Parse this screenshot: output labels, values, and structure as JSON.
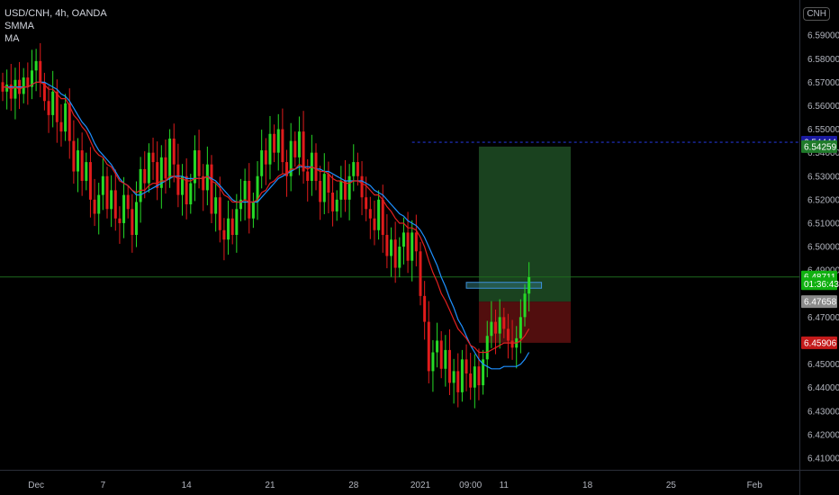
{
  "legend": {
    "symbol": "USD/CNH, 4h, OANDA",
    "indicator1": "SMMA",
    "indicator2": "MA"
  },
  "badge": "CNH",
  "colors": {
    "background": "#000000",
    "up": "#26d926",
    "down": "#e01b1b",
    "smma": "#e02020",
    "ma": "#1e90ff",
    "axis_text": "#b2b5be",
    "current_line": "#1e6b1e",
    "target_line": "#2233cc",
    "profit_zone": "#1f4d25",
    "loss_zone": "#5a1010"
  },
  "chart_data": {
    "type": "candlestick",
    "ylim": [
      6.405,
      6.605
    ],
    "y_ticks": [
      "6.59000",
      "6.58000",
      "6.57000",
      "6.56000",
      "6.55000",
      "6.54000",
      "6.53000",
      "6.52000",
      "6.51000",
      "6.50000",
      "6.49000",
      "6.47000",
      "6.45000",
      "6.44000",
      "6.43000",
      "6.42000",
      "6.41000"
    ],
    "y_tick_values": [
      6.59,
      6.58,
      6.57,
      6.56,
      6.55,
      6.54,
      6.53,
      6.52,
      6.51,
      6.5,
      6.49,
      6.47,
      6.45,
      6.44,
      6.43,
      6.42,
      6.41
    ],
    "x_ticks": [
      {
        "label": "Dec",
        "i": 8
      },
      {
        "label": "7",
        "i": 24
      },
      {
        "label": "14",
        "i": 44
      },
      {
        "label": "21",
        "i": 64
      },
      {
        "label": "28",
        "i": 84
      },
      {
        "label": "2021",
        "i": 100
      },
      {
        "label": "09:00",
        "i": 112
      },
      {
        "label": "11",
        "i": 120
      },
      {
        "label": "18",
        "i": 140
      },
      {
        "label": "25",
        "i": 160
      },
      {
        "label": "Feb",
        "i": 180
      }
    ],
    "price_labels": [
      {
        "text": "6.54444",
        "value": 6.54444,
        "bg": "#1a1aa0",
        "fg": "#ffffff"
      },
      {
        "text": "6.54259",
        "value": 6.54259,
        "bg": "#1f7a2a",
        "fg": "#ffffff"
      },
      {
        "text": "6.48711",
        "value": 6.48711,
        "bg": "#10b010",
        "fg": "#ffffff"
      },
      {
        "text": "01:36:43",
        "value": 6.4842,
        "bg": "#10b010",
        "fg": "#ffffff"
      },
      {
        "text": "6.47658",
        "value": 6.47658,
        "bg": "#8a8a8a",
        "fg": "#ffffff"
      },
      {
        "text": "6.45906",
        "value": 6.45906,
        "bg": "#c41a1a",
        "fg": "#ffffff"
      }
    ],
    "current_price": 6.48711,
    "target_price": 6.54444,
    "position": {
      "entry": 6.47658,
      "target": 6.54259,
      "stop": 6.45906,
      "start_i": 114,
      "end_i": 136
    },
    "entry_box": {
      "top": 6.4848,
      "bottom": 6.4823,
      "start_i": 111,
      "end_i": 129
    },
    "closes": [
      6.566,
      6.569,
      6.563,
      6.571,
      6.565,
      6.572,
      6.568,
      6.575,
      6.579,
      6.57,
      6.562,
      6.556,
      6.566,
      6.553,
      6.549,
      6.561,
      6.545,
      6.532,
      6.541,
      6.528,
      6.536,
      6.52,
      6.514,
      6.522,
      6.53,
      6.516,
      6.524,
      6.512,
      6.51,
      6.522,
      6.516,
      6.505,
      6.519,
      6.533,
      6.527,
      6.54,
      6.536,
      6.525,
      6.538,
      6.529,
      6.546,
      6.535,
      6.522,
      6.53,
      6.518,
      6.527,
      6.541,
      6.53,
      6.524,
      6.535,
      6.514,
      6.521,
      6.507,
      6.503,
      6.512,
      6.505,
      6.516,
      6.52,
      6.528,
      6.512,
      6.519,
      6.53,
      6.541,
      6.535,
      6.548,
      6.54,
      6.55,
      6.536,
      6.53,
      6.545,
      6.538,
      6.549,
      6.532,
      6.528,
      6.54,
      6.528,
      6.519,
      6.531,
      6.523,
      6.515,
      6.52,
      6.528,
      6.52,
      6.53,
      6.536,
      6.53,
      6.521,
      6.516,
      6.512,
      6.507,
      6.52,
      6.505,
      6.496,
      6.503,
      6.491,
      6.5,
      6.506,
      6.494,
      6.506,
      6.498,
      6.479,
      6.468,
      6.447,
      6.455,
      6.46,
      6.448,
      6.456,
      6.442,
      6.447,
      6.438,
      6.452,
      6.446,
      6.44,
      6.449,
      6.441,
      6.452,
      6.462,
      6.468,
      6.463,
      6.47,
      6.465,
      6.46,
      6.457,
      6.461,
      6.47,
      6.48,
      6.487
    ],
    "opens": [
      6.57,
      6.566,
      6.569,
      6.563,
      6.571,
      6.565,
      6.572,
      6.568,
      6.575,
      6.579,
      6.57,
      6.562,
      6.556,
      6.566,
      6.553,
      6.549,
      6.561,
      6.545,
      6.532,
      6.541,
      6.528,
      6.536,
      6.52,
      6.514,
      6.522,
      6.53,
      6.516,
      6.524,
      6.512,
      6.51,
      6.522,
      6.516,
      6.505,
      6.519,
      6.533,
      6.527,
      6.54,
      6.536,
      6.525,
      6.538,
      6.529,
      6.546,
      6.535,
      6.522,
      6.53,
      6.518,
      6.527,
      6.541,
      6.53,
      6.524,
      6.535,
      6.514,
      6.521,
      6.507,
      6.503,
      6.512,
      6.505,
      6.516,
      6.52,
      6.528,
      6.512,
      6.519,
      6.53,
      6.541,
      6.535,
      6.548,
      6.54,
      6.55,
      6.536,
      6.53,
      6.545,
      6.538,
      6.549,
      6.532,
      6.528,
      6.54,
      6.528,
      6.519,
      6.531,
      6.523,
      6.515,
      6.52,
      6.528,
      6.52,
      6.53,
      6.536,
      6.53,
      6.521,
      6.516,
      6.512,
      6.507,
      6.52,
      6.505,
      6.496,
      6.503,
      6.491,
      6.5,
      6.506,
      6.494,
      6.506,
      6.498,
      6.479,
      6.468,
      6.447,
      6.455,
      6.46,
      6.448,
      6.456,
      6.442,
      6.447,
      6.438,
      6.452,
      6.446,
      6.44,
      6.449,
      6.441,
      6.452,
      6.462,
      6.468,
      6.463,
      6.47,
      6.465,
      6.46,
      6.457,
      6.461,
      6.47,
      6.48
    ],
    "smma": [
      6.568,
      6.568,
      6.567,
      6.568,
      6.567,
      6.568,
      6.568,
      6.569,
      6.57,
      6.57,
      6.569,
      6.567,
      6.567,
      6.565,
      6.563,
      6.563,
      6.56,
      6.556,
      6.554,
      6.551,
      6.549,
      6.545,
      6.541,
      6.539,
      6.538,
      6.535,
      6.534,
      6.531,
      6.528,
      6.527,
      6.526,
      6.524,
      6.523,
      6.524,
      6.524,
      6.526,
      6.527,
      6.527,
      6.528,
      6.528,
      6.53,
      6.53,
      6.529,
      6.529,
      6.528,
      6.528,
      6.529,
      6.529,
      6.529,
      6.53,
      6.528,
      6.527,
      6.525,
      6.522,
      6.521,
      6.519,
      6.519,
      6.519,
      6.52,
      6.519,
      6.519,
      6.52,
      6.523,
      6.524,
      6.527,
      6.528,
      6.53,
      6.531,
      6.531,
      6.533,
      6.533,
      6.535,
      6.534,
      6.533,
      6.534,
      6.533,
      6.532,
      6.532,
      6.531,
      6.529,
      6.528,
      6.528,
      6.527,
      6.527,
      6.528,
      6.528,
      6.527,
      6.526,
      6.524,
      6.522,
      6.522,
      6.52,
      6.517,
      6.515,
      6.512,
      6.51,
      6.51,
      6.508,
      6.508,
      6.507,
      6.504,
      6.5,
      6.494,
      6.489,
      6.485,
      6.48,
      6.477,
      6.473,
      6.469,
      6.465,
      6.463,
      6.461,
      6.458,
      6.457,
      6.455,
      6.455,
      6.455,
      6.456,
      6.457,
      6.458,
      6.459,
      6.459,
      6.459,
      6.459,
      6.46,
      6.462,
      6.465
    ],
    "ma": [
      6.568,
      6.568,
      6.568,
      6.568,
      6.568,
      6.568,
      6.568,
      6.569,
      6.57,
      6.57,
      6.57,
      6.569,
      6.568,
      6.567,
      6.565,
      6.564,
      6.562,
      6.559,
      6.556,
      6.553,
      6.551,
      6.548,
      6.544,
      6.541,
      6.539,
      6.537,
      6.535,
      6.532,
      6.529,
      6.527,
      6.526,
      6.524,
      6.522,
      6.522,
      6.523,
      6.524,
      6.525,
      6.526,
      6.527,
      6.528,
      6.529,
      6.53,
      6.53,
      6.53,
      6.529,
      6.529,
      6.529,
      6.529,
      6.529,
      6.53,
      6.529,
      6.528,
      6.526,
      6.524,
      6.522,
      6.52,
      6.519,
      6.519,
      6.519,
      6.519,
      6.519,
      6.519,
      6.521,
      6.523,
      6.525,
      6.527,
      6.529,
      6.53,
      6.531,
      6.532,
      6.533,
      6.534,
      6.534,
      6.534,
      6.534,
      6.533,
      6.533,
      6.532,
      6.532,
      6.531,
      6.53,
      6.529,
      6.528,
      6.528,
      6.528,
      6.528,
      6.528,
      6.527,
      6.526,
      6.524,
      6.523,
      6.522,
      6.52,
      6.518,
      6.516,
      6.514,
      6.513,
      6.511,
      6.51,
      6.509,
      6.507,
      6.504,
      6.5,
      6.496,
      6.492,
      6.487,
      6.483,
      6.478,
      6.474,
      6.469,
      6.466,
      6.462,
      6.458,
      6.455,
      6.452,
      6.45,
      6.449,
      6.448,
      6.448,
      6.448,
      6.449,
      6.449,
      6.449,
      6.449,
      6.45,
      6.452,
      6.455
    ]
  }
}
